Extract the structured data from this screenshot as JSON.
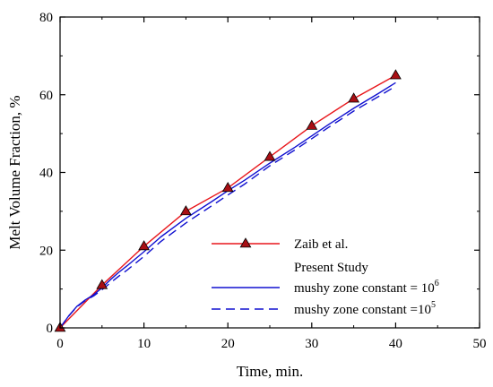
{
  "chart_data": {
    "type": "line",
    "xlabel": "Time, min.",
    "ylabel": "Melt Volume Fraction, %",
    "xlim": [
      0,
      50
    ],
    "ylim": [
      0,
      80
    ],
    "xticks": [
      0,
      10,
      20,
      30,
      40,
      50
    ],
    "yticks": [
      0,
      20,
      40,
      60,
      80
    ],
    "grid": false,
    "legend_position": "bottom-right",
    "legend_heading": "Present Study",
    "series": [
      {
        "name": "Zaib et al.",
        "color": "#e8161b",
        "marker": "triangle",
        "marker_fill": "#a80f14",
        "x": [
          0,
          5,
          10,
          15,
          20,
          25,
          30,
          35,
          40
        ],
        "y": [
          0,
          11,
          21,
          30,
          36,
          44,
          52,
          59,
          65
        ]
      },
      {
        "name": "mushy zone constant = 10",
        "name_exponent": "6",
        "color": "#1010d0",
        "style": "solid",
        "x": [
          0,
          1,
          2,
          3,
          4,
          5,
          6,
          7,
          8,
          10,
          12,
          15,
          18,
          20,
          22,
          25,
          28,
          30,
          32,
          35,
          38,
          40
        ],
        "y": [
          0,
          3,
          5.5,
          7.2,
          8.5,
          10.3,
          12.4,
          14.3,
          16,
          19.6,
          23.4,
          28.2,
          32.4,
          35.3,
          38,
          42.4,
          46.5,
          49.4,
          52.3,
          56.5,
          60.4,
          63.1
        ]
      },
      {
        "name": "mushy zone constant =10",
        "name_exponent": "5",
        "color": "#1010d0",
        "style": "dashed",
        "x": [
          0,
          1,
          2,
          3,
          4,
          5,
          6,
          7,
          8,
          10,
          12,
          15,
          18,
          20,
          22,
          25,
          28,
          30,
          32,
          35,
          38,
          40
        ],
        "y": [
          0,
          3,
          5.4,
          7,
          8.2,
          9.8,
          11.6,
          13.3,
          14.9,
          18.4,
          22.2,
          27,
          31.3,
          34.2,
          37,
          41.7,
          45.8,
          48.7,
          51.6,
          55.8,
          59.6,
          62.2
        ]
      }
    ]
  }
}
